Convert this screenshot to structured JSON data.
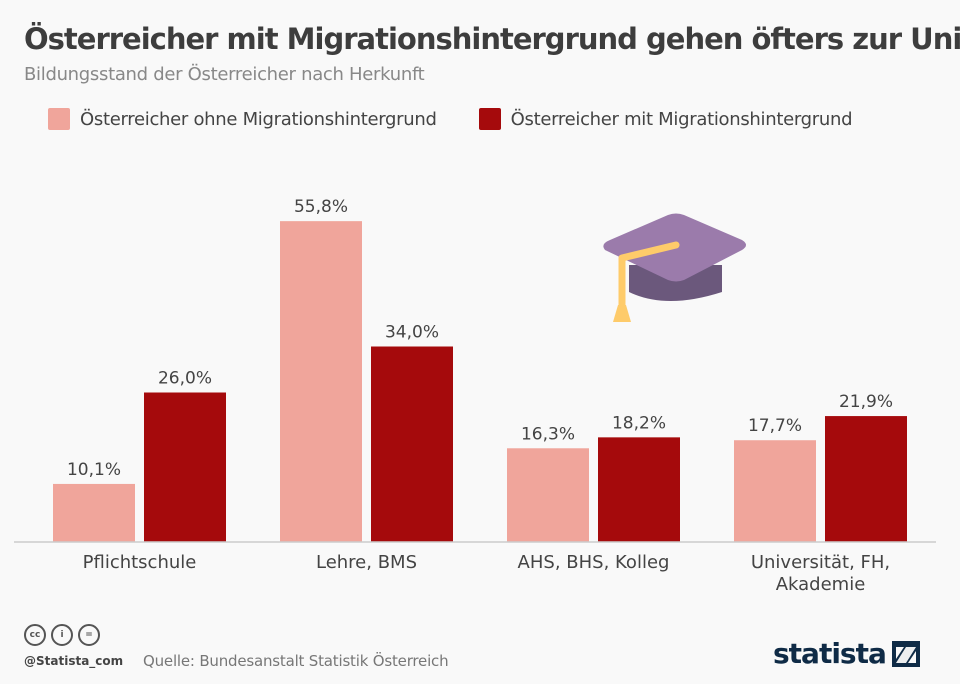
{
  "header": {
    "title": "Österreicher mit Migrationshintergrund gehen öfters zur Uni",
    "subtitle": "Bildungsstand der Österreicher nach Herkunft"
  },
  "chart_data": {
    "type": "bar",
    "title": "Österreicher mit Migrationshintergrund gehen öfters zur Uni",
    "subtitle": "Bildungsstand der Österreicher nach Herkunft",
    "xlabel": "",
    "ylabel": "",
    "ylim": [
      0,
      60
    ],
    "grid": false,
    "legend_position": "top-left",
    "categories": [
      "Pflichtschule",
      "Lehre, BMS",
      "AHS, BHS, Kolleg",
      "Universität, FH, Akademie"
    ],
    "category_lines": [
      [
        "Pflichtschule"
      ],
      [
        "Lehre, BMS"
      ],
      [
        "AHS, BHS, Kolleg"
      ],
      [
        "Universität, FH,",
        "Akademie"
      ]
    ],
    "series": [
      {
        "name": "Österreicher ohne Migrationshintergrund",
        "color": "#f0a59b",
        "values": [
          10.1,
          55.8,
          16.3,
          17.7
        ],
        "labels": [
          "10,1%",
          "55,8%",
          "16,3%",
          "17,7%"
        ]
      },
      {
        "name": "Österreicher mit Migrationshintergrund",
        "color": "#a50a0c",
        "values": [
          26.0,
          34.0,
          18.2,
          21.9
        ],
        "labels": [
          "26,0%",
          "34,0%",
          "18,2%",
          "21,9%"
        ]
      }
    ]
  },
  "icon": {
    "name": "graduation-cap-icon",
    "colors": {
      "top": "#9b7bab",
      "base": "#6b587c",
      "tassel": "#fecb6a"
    }
  },
  "footer": {
    "handle": "@Statista_com",
    "source": "Quelle: Bundesanstalt Statistik Österreich",
    "license_icons": [
      "cc",
      "by",
      "nd"
    ],
    "license_glyphs": [
      "cc",
      "i",
      "="
    ],
    "brand": "statista"
  },
  "colors": {
    "axis": "#cccccc",
    "brand": "#0f2b46"
  }
}
